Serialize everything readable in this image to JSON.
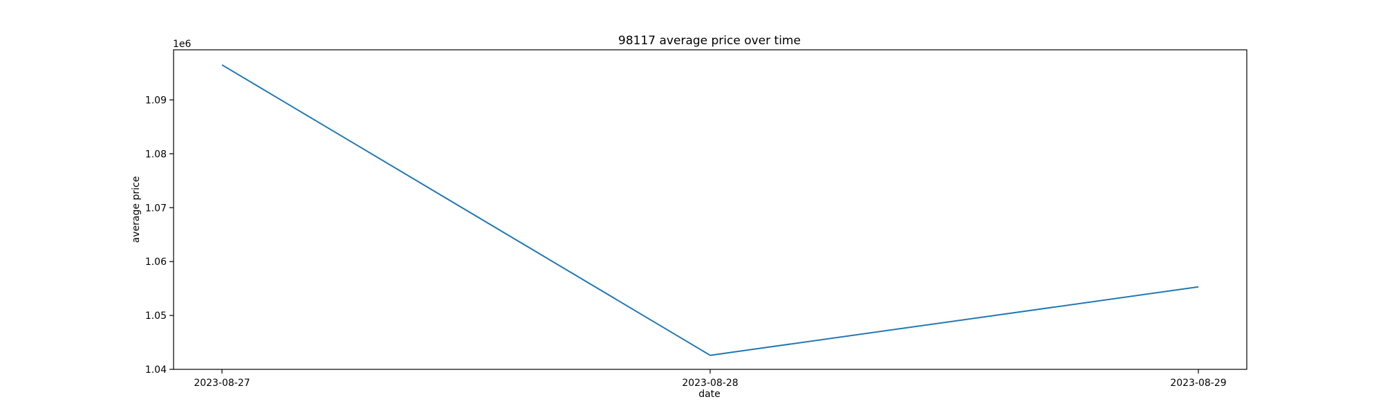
{
  "chart_data": {
    "type": "line",
    "title": "98117 average price over time",
    "xlabel": "date",
    "ylabel": "average price",
    "y_offset_label": "1e6",
    "categories": [
      "2023-08-27",
      "2023-08-28",
      "2023-08-29"
    ],
    "series": [
      {
        "values": [
          1096500,
          1042600,
          1055300
        ],
        "color": "#1f77b4"
      }
    ],
    "ylim": [
      1040000,
      1099300
    ],
    "yticks": [
      1040000,
      1050000,
      1060000,
      1070000,
      1080000,
      1090000
    ],
    "ytick_labels": [
      "1.04",
      "1.05",
      "1.06",
      "1.07",
      "1.08",
      "1.09"
    ],
    "grid": false,
    "legend": false
  }
}
